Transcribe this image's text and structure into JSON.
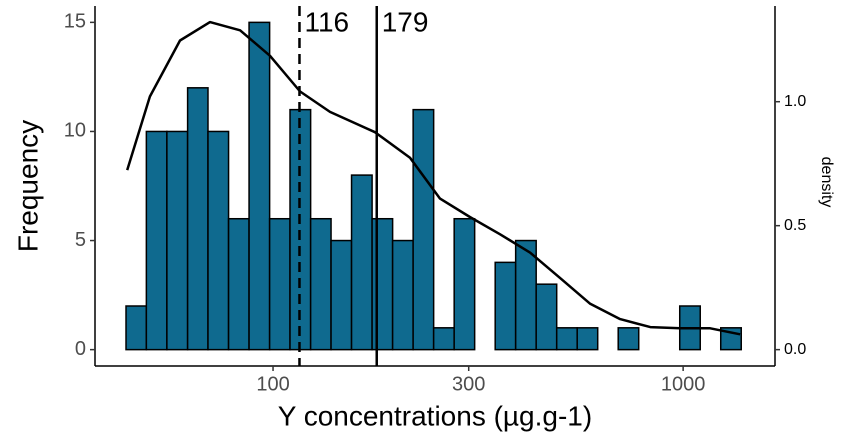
{
  "chart_data": {
    "type": "histogram",
    "x_label": "Y concentrations (µg.g-1)",
    "y_label": "Frequency",
    "y2_label": "density",
    "x_log": true,
    "bins": [
      43.8,
      49.1,
      55.1,
      61.9,
      69.4,
      77.9,
      87.4,
      98.1,
      110.0,
      123.5,
      138.5,
      155.4,
      174.4,
      195.7,
      219.6,
      246.4,
      276.5,
      310.2,
      348.1,
      390.5,
      438.2,
      491.7,
      551.7,
      619.0,
      694.5,
      779.3,
      874.4,
      981.1,
      1100.8,
      1235.1,
      1385.8
    ],
    "counts": [
      2,
      10,
      10,
      12,
      10,
      6,
      15,
      6,
      11,
      6,
      5,
      8,
      6,
      5,
      11,
      1,
      6,
      0,
      4,
      5,
      3,
      1,
      1,
      0,
      1,
      0,
      0,
      2,
      0,
      1
    ],
    "color": "#0f6a8f",
    "edge_color": "#000000",
    "density_curve": {
      "axis": "y2",
      "color": "#000000",
      "x": [
        44.1,
        50.1,
        59.3,
        70.2,
        83.1,
        98.3,
        116.4,
        137.7,
        177.3,
        215.8,
        255.4,
        302,
        357.9,
        423.6,
        501.6,
        593.3,
        701.9,
        831.7,
        984,
        1164,
        1377
      ],
      "values": [
        0.724,
        1.021,
        1.247,
        1.321,
        1.288,
        1.185,
        1.041,
        0.959,
        0.877,
        0.774,
        0.609,
        0.535,
        0.465,
        0.391,
        0.288,
        0.185,
        0.123,
        0.091,
        0.086,
        0.086,
        0.062
      ]
    },
    "vlines": [
      {
        "value": 116,
        "style": "dashed"
      },
      {
        "value": 179,
        "style": "solid"
      }
    ],
    "xlim": [
      36.8,
      1675
    ],
    "xticks": [
      100,
      300,
      1000
    ],
    "ylim": [
      -0.75,
      15.75
    ],
    "yticks": [
      0,
      5,
      10,
      15
    ],
    "y2lim": [
      -0.066,
      1.386
    ],
    "y2ticks": [
      {
        "value": 0,
        "label": "0.0"
      },
      {
        "value": 0.5,
        "label": "0.5"
      },
      {
        "value": 1,
        "label": "1.0"
      }
    ]
  }
}
